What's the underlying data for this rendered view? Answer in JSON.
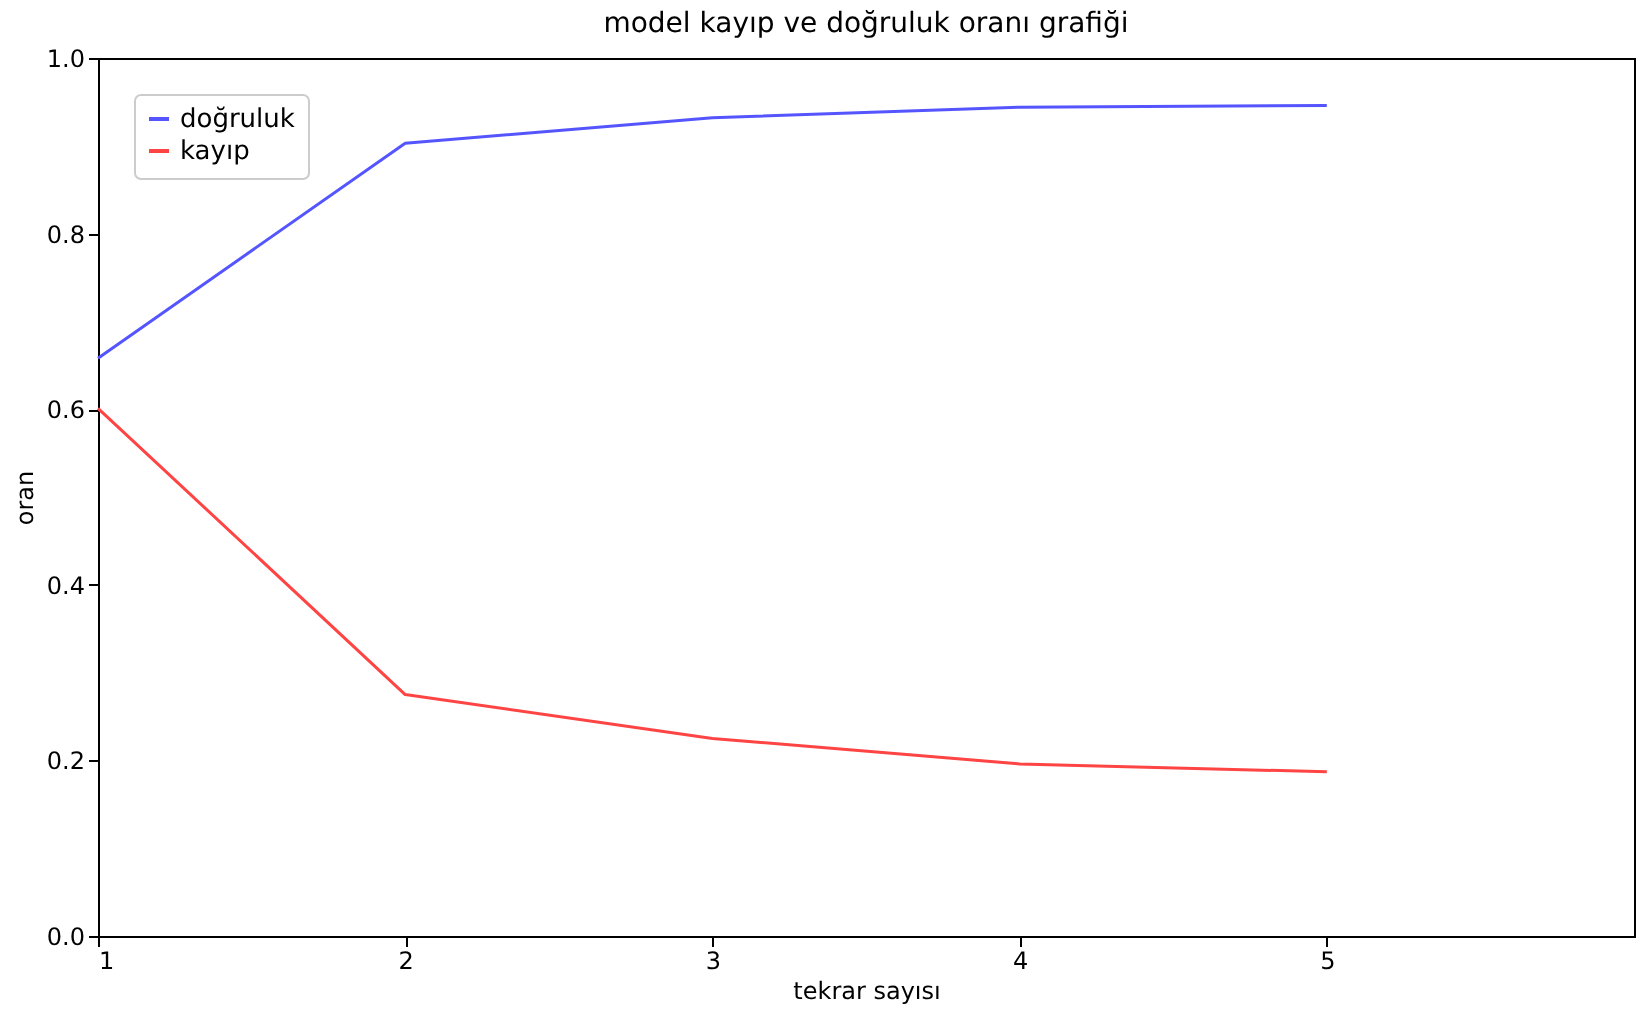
{
  "chart_data": {
    "type": "line",
    "title": "model kayıp ve doğruluk oranı grafiği",
    "xlabel": "tekrar sayısı",
    "ylabel": "oran",
    "x": [
      1,
      2,
      3,
      4,
      5
    ],
    "series": [
      {
        "name": "doğruluk",
        "color": "#5555ff",
        "values": [
          0.658,
          0.903,
          0.932,
          0.944,
          0.946
        ]
      },
      {
        "name": "kayıp",
        "color": "#ff4444",
        "values": [
          0.601,
          0.275,
          0.225,
          0.196,
          0.187
        ]
      }
    ],
    "xlim": [
      1,
      6
    ],
    "xticks": [
      1,
      2,
      3,
      4,
      5
    ],
    "ylim": [
      0,
      1
    ],
    "yticks": [
      {
        "value": 0,
        "label": "0.0"
      },
      {
        "value": 0.2,
        "label": "0.2"
      },
      {
        "value": 0.4,
        "label": "0.4"
      },
      {
        "value": 0.6,
        "label": "0.6"
      },
      {
        "value": 0.8,
        "label": "0.8"
      },
      {
        "value": 1,
        "label": "1.0"
      }
    ],
    "grid": false,
    "legend": "top left",
    "marker": "none",
    "line_style": "solid"
  }
}
